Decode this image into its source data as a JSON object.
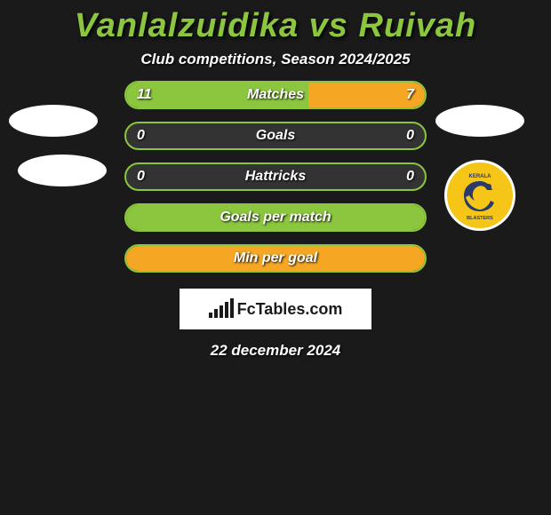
{
  "title": "Vanlalzuidika vs Ruivah",
  "subtitle": "Club competitions, Season 2024/2025",
  "date": "22 december 2024",
  "brand": "FcTables.com",
  "colors": {
    "accent_left": "#8bc63e",
    "accent_right": "#f5a623",
    "background": "#1a1a1a",
    "bar_bg": "#333333",
    "text": "#ffffff",
    "badge_bg": "#f5c518",
    "badge_border": "#ffffff"
  },
  "rows": [
    {
      "label": "Matches",
      "left": "11",
      "right": "7",
      "left_pct": 61,
      "right_pct": 39,
      "show_values": true
    },
    {
      "label": "Goals",
      "left": "0",
      "right": "0",
      "left_pct": 0,
      "right_pct": 0,
      "show_values": true
    },
    {
      "label": "Hattricks",
      "left": "0",
      "right": "0",
      "left_pct": 0,
      "right_pct": 0,
      "show_values": true
    },
    {
      "label": "Goals per match",
      "left": "",
      "right": "",
      "left_pct": 100,
      "right_pct": 0,
      "show_values": false,
      "full_fill": "left"
    },
    {
      "label": "Min per goal",
      "left": "",
      "right": "",
      "left_pct": 0,
      "right_pct": 100,
      "show_values": false,
      "full_fill": "right"
    }
  ],
  "team_right": {
    "name": "Kerala Blasters",
    "badge_text_top": "KERALA",
    "badge_text_bottom": "BLASTERS"
  },
  "chart_icon_bars": [
    6,
    10,
    14,
    18,
    22
  ]
}
